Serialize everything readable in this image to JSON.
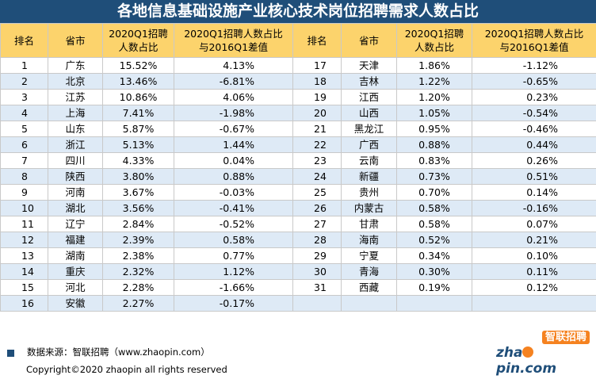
{
  "title": "各地信息基础设施产业核心技术岗位招聘需求人数占比",
  "headers": {
    "rank": "排名",
    "province": "省市",
    "ratio_line1": "2020Q1招聘",
    "ratio_line2": "人数占比",
    "diff_line1": "2020Q1招聘人数占比",
    "diff_line2": "与2016Q1差值"
  },
  "left_rows": [
    {
      "rank": "1",
      "province": "广东",
      "ratio": "15.52%",
      "diff": "4.13%"
    },
    {
      "rank": "2",
      "province": "北京",
      "ratio": "13.46%",
      "diff": "-6.81%"
    },
    {
      "rank": "3",
      "province": "江苏",
      "ratio": "10.86%",
      "diff": "4.06%"
    },
    {
      "rank": "4",
      "province": "上海",
      "ratio": "7.41%",
      "diff": "-1.98%"
    },
    {
      "rank": "5",
      "province": "山东",
      "ratio": "5.87%",
      "diff": "-0.67%"
    },
    {
      "rank": "6",
      "province": "浙江",
      "ratio": "5.13%",
      "diff": "1.44%"
    },
    {
      "rank": "7",
      "province": "四川",
      "ratio": "4.33%",
      "diff": "0.04%"
    },
    {
      "rank": "8",
      "province": "陕西",
      "ratio": "3.80%",
      "diff": "0.88%"
    },
    {
      "rank": "9",
      "province": "河南",
      "ratio": "3.67%",
      "diff": "-0.03%"
    },
    {
      "rank": "10",
      "province": "湖北",
      "ratio": "3.56%",
      "diff": "-0.41%"
    },
    {
      "rank": "11",
      "province": "辽宁",
      "ratio": "2.84%",
      "diff": "-0.52%"
    },
    {
      "rank": "12",
      "province": "福建",
      "ratio": "2.39%",
      "diff": "0.58%"
    },
    {
      "rank": "13",
      "province": "湖南",
      "ratio": "2.38%",
      "diff": "0.77%"
    },
    {
      "rank": "14",
      "province": "重庆",
      "ratio": "2.32%",
      "diff": "1.12%"
    },
    {
      "rank": "15",
      "province": "河北",
      "ratio": "2.28%",
      "diff": "-1.66%"
    },
    {
      "rank": "16",
      "province": "安徽",
      "ratio": "2.27%",
      "diff": "-0.17%"
    }
  ],
  "right_rows": [
    {
      "rank": "17",
      "province": "天津",
      "ratio": "1.86%",
      "diff": "-1.12%"
    },
    {
      "rank": "18",
      "province": "吉林",
      "ratio": "1.22%",
      "diff": "-0.65%"
    },
    {
      "rank": "19",
      "province": "江西",
      "ratio": "1.20%",
      "diff": "0.23%"
    },
    {
      "rank": "20",
      "province": "山西",
      "ratio": "1.05%",
      "diff": "-0.54%"
    },
    {
      "rank": "21",
      "province": "黑龙江",
      "ratio": "0.95%",
      "diff": "-0.46%"
    },
    {
      "rank": "22",
      "province": "广西",
      "ratio": "0.88%",
      "diff": "0.44%"
    },
    {
      "rank": "23",
      "province": "云南",
      "ratio": "0.83%",
      "diff": "0.26%"
    },
    {
      "rank": "24",
      "province": "新疆",
      "ratio": "0.73%",
      "diff": "0.51%"
    },
    {
      "rank": "25",
      "province": "贵州",
      "ratio": "0.70%",
      "diff": "0.14%"
    },
    {
      "rank": "26",
      "province": "内蒙古",
      "ratio": "0.58%",
      "diff": "-0.16%"
    },
    {
      "rank": "27",
      "province": "甘肃",
      "ratio": "0.58%",
      "diff": "0.07%"
    },
    {
      "rank": "28",
      "province": "海南",
      "ratio": "0.52%",
      "diff": "0.21%"
    },
    {
      "rank": "29",
      "province": "宁夏",
      "ratio": "0.34%",
      "diff": "0.10%"
    },
    {
      "rank": "30",
      "province": "青海",
      "ratio": "0.30%",
      "diff": "0.11%"
    },
    {
      "rank": "31",
      "province": "西藏",
      "ratio": "0.19%",
      "diff": "0.12%"
    },
    {
      "rank": "",
      "province": "",
      "ratio": "",
      "diff": ""
    }
  ],
  "footer": {
    "source": "数据来源：智联招聘（www.zhaopin.com）",
    "copyright": "Copyright©2020 zhaopin all rights reserved",
    "logo_cn": "智联招聘",
    "logo_en_pre": "zha",
    "logo_en_post": "pin.com"
  },
  "colors": {
    "title_bg": "#1f4e79",
    "header_bg": "#fcd36c",
    "row_alt_bg": "#deeaf6",
    "logo_orange": "#f58220"
  }
}
